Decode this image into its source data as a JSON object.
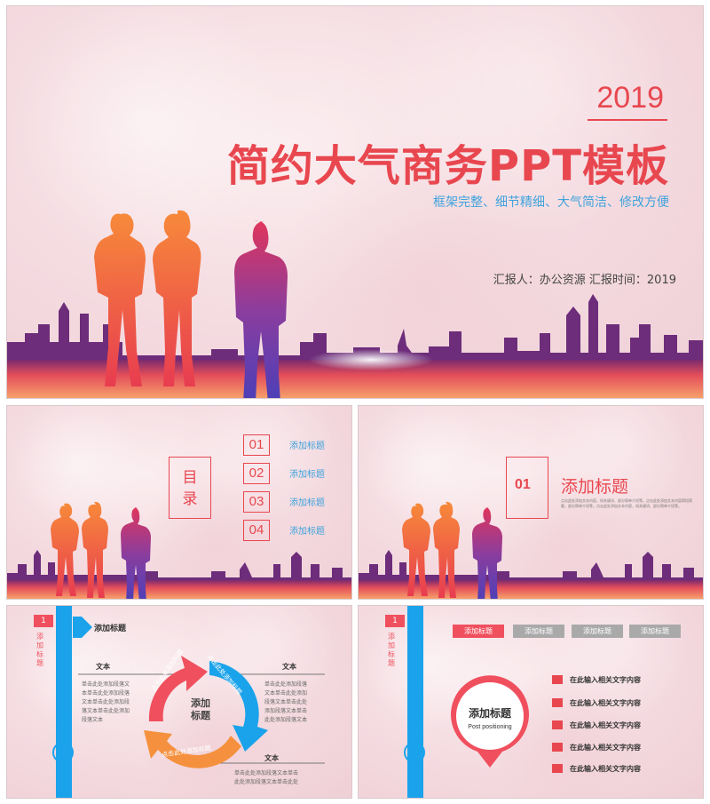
{
  "cover": {
    "year": "2019",
    "title": "简约大气商务PPT模板",
    "subtitle": "框架完整、细节精细、大气简洁、修改方便",
    "reporter": "汇报人：办公资源    汇报时间：2019"
  },
  "toc": {
    "heading": "目录",
    "items": [
      {
        "num": "01",
        "label": "添加标题"
      },
      {
        "num": "02",
        "label": "添加标题"
      },
      {
        "num": "03",
        "label": "添加标题"
      },
      {
        "num": "04",
        "label": "添加标题"
      }
    ]
  },
  "section": {
    "num": "01",
    "title": "添加标题",
    "desc": "点击此处添加文本内容，如关键词、部分简单介绍等。点击此处添加文本内容简短简要，部分简单介绍等。点击此处添加文本内容，如关键词、部分简单介绍等。"
  },
  "slide4": {
    "badge": "1",
    "side_title": "添加标题",
    "heading": "添加标题",
    "label_left": "文本",
    "label_right": "文本",
    "label_bottom": "文本",
    "para_left": "单击此处添加段落文本单击此处添加段落文本单击此处添加段落文本单击此处添加段落文本",
    "para_right": "单击此处添加段落文本单击此处添加段落文本单击此处添加段落文本单击此处添加段落文本",
    "para_bottom": "单击此处添加段落文本单击此处添加段落文本单击此处",
    "center_label": "添加标题",
    "arrow_red": "点击此处添加标题",
    "arrow_blue": "点击此处添加标题",
    "arrow_orange": "点击此处添加标题"
  },
  "slide5": {
    "badge": "1",
    "side_title": "添加标题",
    "tabs": [
      "添加标题",
      "添加标题",
      "添加标题",
      "添加标题"
    ],
    "pin_title": "添加标题",
    "pin_sub": "Post positioning",
    "items": [
      "在此输入相关文字内容",
      "在此输入相关文字内容",
      "在此输入相关文字内容",
      "在此输入相关文字内容",
      "在此输入相关文字内容"
    ]
  },
  "colors": {
    "accent_red": "#e8474f",
    "accent_blue": "#1aa3ea",
    "tab_gray": "#a9a9a9"
  }
}
